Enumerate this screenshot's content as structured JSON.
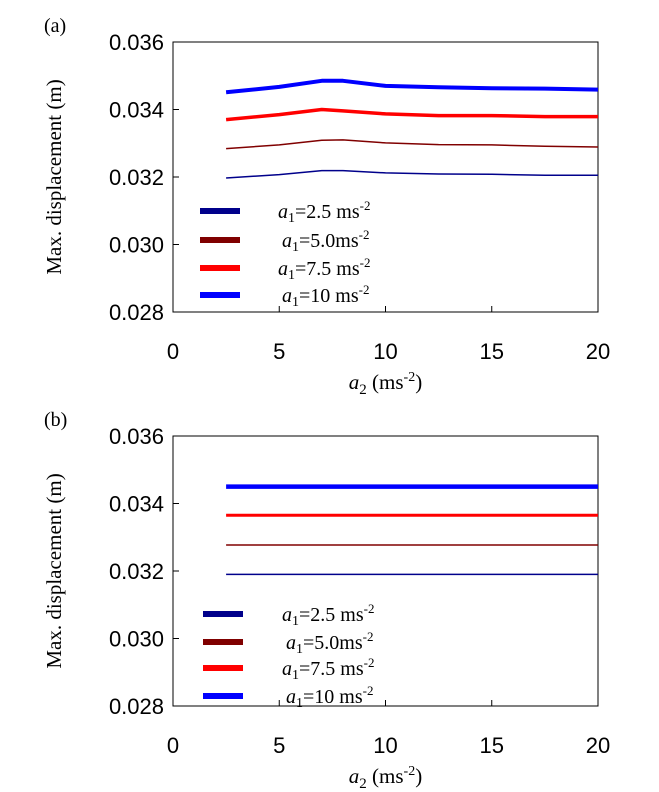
{
  "chart_data": [
    {
      "type": "line",
      "panel_label": "(a)",
      "ylabel": "Max. displacement (m)",
      "xlabel_main": "a",
      "xlabel_sub": "2",
      "xlabel_units": " (ms",
      "xlabel_sup": "-2",
      "xlabel_close": ")",
      "xlim": [
        0,
        20
      ],
      "ylim": [
        0.028,
        0.036
      ],
      "xticks": [
        "0",
        "5",
        "10",
        "15",
        "20"
      ],
      "yticks": [
        "0.028",
        "0.030",
        "0.032",
        "0.034",
        "0.036"
      ],
      "grid": false,
      "legend_position": "lower-left",
      "series": [
        {
          "name_main": "a",
          "name_sub": "1",
          "name_rest": "=2.5 ms",
          "name_sup": "-2",
          "color": "#00008b",
          "x": [
            2.5,
            5,
            7,
            8,
            10,
            12.5,
            15,
            17.5,
            20
          ],
          "y": [
            0.03197,
            0.03207,
            0.03219,
            0.03219,
            0.03212,
            0.03209,
            0.03208,
            0.03205,
            0.03205
          ]
        },
        {
          "name_main": "a",
          "name_sub": "1",
          "name_rest": "=5.0ms",
          "name_sup": "-2",
          "color": "#800000",
          "x": [
            2.5,
            5,
            7,
            8,
            10,
            12.5,
            15,
            17.5,
            20
          ],
          "y": [
            0.03284,
            0.03295,
            0.03309,
            0.0331,
            0.03301,
            0.03296,
            0.03295,
            0.03291,
            0.03289
          ]
        },
        {
          "name_main": "a",
          "name_sub": "1",
          "name_rest": "=7.5 ms",
          "name_sup": "-2",
          "color": "#ff0000",
          "x": [
            2.5,
            5,
            7,
            8,
            10,
            12.5,
            15,
            17.5,
            20
          ],
          "y": [
            0.0337,
            0.03385,
            0.034,
            0.03396,
            0.03387,
            0.03382,
            0.03382,
            0.03379,
            0.03379
          ]
        },
        {
          "name_main": "a",
          "name_sub": "1",
          "name_rest": "=10 ms",
          "name_sup": "-2",
          "color": "#0000ff",
          "x": [
            2.5,
            5,
            7,
            8,
            10,
            12.5,
            15,
            17.5,
            20
          ],
          "y": [
            0.03451,
            0.03467,
            0.03485,
            0.03485,
            0.0347,
            0.03466,
            0.03463,
            0.03462,
            0.03459
          ]
        }
      ]
    },
    {
      "type": "line",
      "panel_label": "(b)",
      "ylabel": "Max. displacement (m)",
      "xlabel_main": "a",
      "xlabel_sub": "2",
      "xlabel_units": " (ms",
      "xlabel_sup": "-2",
      "xlabel_close": ")",
      "xlim": [
        0,
        20
      ],
      "ylim": [
        0.028,
        0.036
      ],
      "xticks": [
        "0",
        "5",
        "10",
        "15",
        "20"
      ],
      "yticks": [
        "0.028",
        "0.030",
        "0.032",
        "0.034",
        "0.036"
      ],
      "grid": false,
      "legend_position": "lower-left",
      "series": [
        {
          "name_main": "a",
          "name_sub": "1",
          "name_rest": "=2.5 ms",
          "name_sup": "-2",
          "color": "#00008b",
          "x": [
            2.5,
            20
          ],
          "y": [
            0.0319,
            0.0319
          ]
        },
        {
          "name_main": "a",
          "name_sub": "1",
          "name_rest": "=5.0ms",
          "name_sup": "-2",
          "color": "#800000",
          "x": [
            2.5,
            20
          ],
          "y": [
            0.03277,
            0.03277
          ]
        },
        {
          "name_main": "a",
          "name_sub": "1",
          "name_rest": "=7.5 ms",
          "name_sup": "-2",
          "color": "#ff0000",
          "x": [
            2.5,
            20
          ],
          "y": [
            0.03365,
            0.03365
          ]
        },
        {
          "name_main": "a",
          "name_sub": "1",
          "name_rest": "=10 ms",
          "name_sup": "-2",
          "color": "#0000ff",
          "x": [
            2.5,
            20
          ],
          "y": [
            0.0345,
            0.0345
          ]
        }
      ]
    }
  ]
}
